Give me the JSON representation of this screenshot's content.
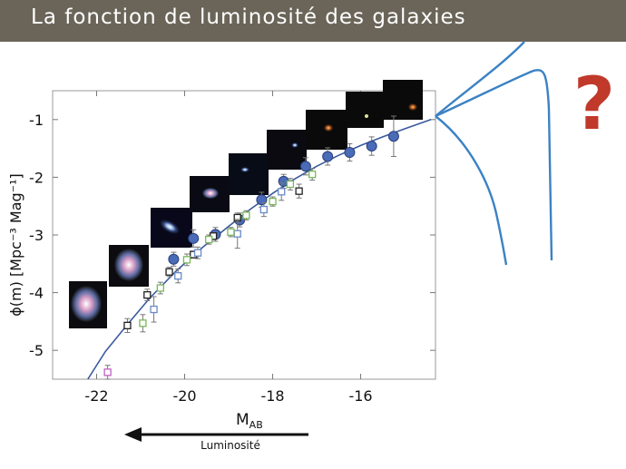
{
  "slide": {
    "title": "La fonction de luminosité des galaxies",
    "title_bar_color": "#6b6559",
    "question_mark": "?",
    "question_color": "#c0392b",
    "arrow_label": "Luminosité"
  },
  "chart_data": {
    "type": "scatter",
    "title": "",
    "xlabel": "M",
    "xlabel_sub": "AB",
    "ylabel": "ϕ(m) [Mpc⁻³ Mag⁻¹]",
    "xlim": [
      -23.0,
      -14.3
    ],
    "ylim": [
      -5.5,
      -0.5
    ],
    "xticks": [
      -22,
      -20,
      -18,
      -16
    ],
    "yticks": [
      -1,
      -2,
      -3,
      -4,
      -5
    ],
    "grid": false,
    "colors": {
      "fit": "#3a5a9e",
      "filled": "#4a6bb8",
      "black": "#222222",
      "blue": "#6a8ac8",
      "green": "#7ab85a",
      "magenta": "#c060c0",
      "extrapolation": "#3b82c4"
    },
    "fit_curve": {
      "x": [
        -22.2,
        -21.8,
        -21.3,
        -20.8,
        -20.2,
        -19.6,
        -19.0,
        -18.5,
        -18.0,
        -17.5,
        -17.0,
        -16.5,
        -16.0,
        -15.5,
        -15.0,
        -14.4
      ],
      "y": [
        -5.5,
        -5.02,
        -4.55,
        -4.1,
        -3.63,
        -3.22,
        -2.85,
        -2.55,
        -2.28,
        -2.03,
        -1.81,
        -1.62,
        -1.45,
        -1.3,
        -1.16,
        -1.0
      ]
    },
    "series": [
      {
        "marker": "filled-circle",
        "color": "#4a6bb8",
        "x": [
          -20.25,
          -19.8,
          -19.3,
          -18.75,
          -18.25,
          -17.75,
          -17.25,
          -16.75,
          -16.25,
          -15.75,
          -15.25
        ],
        "y": [
          -3.42,
          -3.06,
          -2.99,
          -2.74,
          -2.39,
          -2.07,
          -1.81,
          -1.64,
          -1.57,
          -1.46,
          -1.29
        ],
        "err": [
          0.12,
          0.15,
          0.12,
          0.12,
          0.13,
          0.12,
          0.15,
          0.15,
          0.15,
          0.16,
          0.35
        ]
      },
      {
        "marker": "open-square",
        "color": "#222222",
        "x": [
          -21.3,
          -20.85,
          -20.35,
          -19.8,
          -19.35,
          -18.8,
          -17.4
        ],
        "y": [
          -4.57,
          -4.04,
          -3.64,
          -3.34,
          -3.02,
          -2.7,
          -2.24
        ],
        "err": [
          0.12,
          0.1,
          0.08,
          0.06,
          0.06,
          0.08,
          0.12
        ]
      },
      {
        "marker": "open-square",
        "color": "#6a8ac8",
        "x": [
          -20.7,
          -20.15,
          -19.7,
          -18.8,
          -18.2,
          -17.8
        ],
        "y": [
          -4.29,
          -3.71,
          -3.31,
          -2.98,
          -2.56,
          -2.25
        ],
        "err": [
          0.22,
          0.12,
          0.1,
          0.25,
          0.12,
          0.15
        ]
      },
      {
        "marker": "open-square",
        "color": "#7ab85a",
        "x": [
          -20.95,
          -20.55,
          -19.95,
          -19.45,
          -18.95,
          -18.6,
          -18.0,
          -17.6,
          -17.1
        ],
        "y": [
          -4.53,
          -3.92,
          -3.43,
          -3.08,
          -2.95,
          -2.66,
          -2.42,
          -2.12,
          -1.95
        ],
        "err": [
          0.15,
          0.1,
          0.1,
          0.08,
          0.08,
          0.08,
          0.08,
          0.1,
          0.1
        ]
      },
      {
        "marker": "open-square",
        "color": "#c060c0",
        "x": [
          -21.75
        ],
        "y": [
          -5.38
        ],
        "err": [
          0.12
        ]
      }
    ]
  }
}
